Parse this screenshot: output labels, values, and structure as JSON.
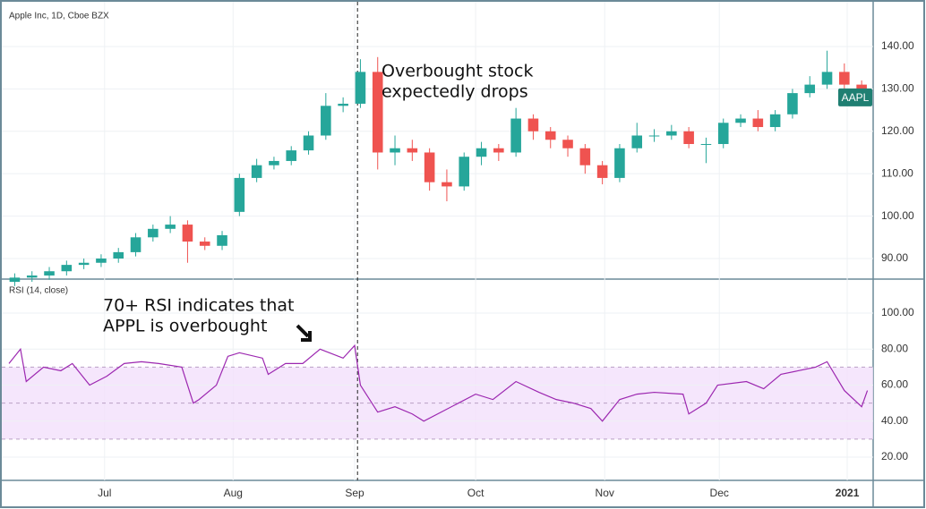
{
  "chart_data": {
    "type": "candlestick",
    "title": "Apple Inc, 1D, Cboe BZX",
    "symbol_label": "AAPL",
    "annotations": [
      "Overbought stock",
      "expectedly drops",
      "70+ RSI indicates that",
      "APPL is overbought"
    ],
    "xlim": [
      0,
      150
    ],
    "xticks": [
      {
        "value": 16.6,
        "label": "Jul"
      },
      {
        "value": 38.9,
        "label": "Aug"
      },
      {
        "value": 60,
        "label": "Sep"
      },
      {
        "value": 81,
        "label": "Oct"
      },
      {
        "value": 103.4,
        "label": "Nov"
      },
      {
        "value": 123.3,
        "label": "Dec"
      },
      {
        "value": 145.5,
        "label": "2021"
      }
    ],
    "marker_x": 60.5,
    "x": [
      1,
      4,
      7,
      10,
      13,
      16,
      19,
      22,
      25,
      28,
      31,
      34,
      37,
      40,
      43,
      46,
      49,
      52,
      55,
      58,
      61,
      64,
      67,
      70,
      73,
      76,
      79,
      82,
      85,
      88,
      91,
      94,
      97,
      100,
      103,
      106,
      109,
      112,
      115,
      118,
      121,
      124,
      127,
      130,
      133,
      136,
      139,
      142,
      145,
      148
    ],
    "open": [
      84.5,
      85.5,
      86,
      87,
      88.5,
      89,
      90,
      91.5,
      95,
      97,
      98,
      94,
      93,
      101,
      109,
      112,
      113,
      115.5,
      119,
      126,
      126.5,
      134,
      115,
      116,
      115,
      108,
      107,
      114,
      116,
      115,
      123,
      120,
      118,
      116,
      112,
      109,
      116,
      119,
      119,
      120,
      117,
      117,
      122,
      123,
      121,
      124,
      129,
      131,
      134,
      131
    ],
    "high": [
      86.5,
      87,
      88,
      89.5,
      90,
      91,
      92.5,
      96,
      98,
      100,
      99,
      95,
      96.5,
      110,
      113.5,
      114,
      116.5,
      120,
      129,
      128,
      137,
      137.5,
      119,
      118,
      116,
      111,
      115,
      117.5,
      117,
      125.5,
      124,
      121,
      119,
      117,
      113,
      117,
      122,
      120.5,
      121.5,
      121,
      118.5,
      123,
      124,
      125,
      125,
      130,
      133,
      139,
      136,
      132
    ],
    "low": [
      83.5,
      84.5,
      85,
      86,
      87.5,
      88,
      89,
      90.5,
      94,
      96,
      89,
      92,
      92,
      100,
      108,
      111,
      112,
      114.5,
      118,
      124.5,
      125.5,
      111,
      112,
      113,
      106,
      103.5,
      106,
      112,
      113,
      114,
      118,
      116,
      114,
      110,
      107.5,
      108,
      115,
      117.5,
      118,
      116,
      112.5,
      116,
      121,
      120,
      120,
      123,
      128,
      130,
      129,
      126.5
    ],
    "close": [
      85.5,
      86,
      87,
      88.5,
      89,
      90,
      91.5,
      95,
      97,
      98,
      94,
      93,
      95.5,
      109,
      112,
      113,
      115.5,
      119,
      126,
      126.5,
      134,
      115,
      116,
      115,
      108,
      107,
      114,
      116,
      115,
      123,
      120,
      118,
      116,
      112,
      109,
      116,
      119,
      119,
      120,
      117,
      117,
      122,
      123,
      121,
      124,
      129,
      131,
      134,
      131,
      128
    ],
    "up_color": "#26a69a",
    "down_color": "#ef5350",
    "ylim": [
      85.15,
      149.9
    ],
    "yticks": [
      {
        "value": 90,
        "label": "90.00"
      },
      {
        "value": 100,
        "label": "100.00"
      },
      {
        "value": 110,
        "label": "110.00"
      },
      {
        "value": 120,
        "label": "120.00"
      },
      {
        "value": 130,
        "label": "130.00"
      },
      {
        "value": 140,
        "label": "140.00"
      }
    ],
    "grid": true,
    "rsi": {
      "title": "RSI (14, close)",
      "color": "#9c27b0",
      "x": [
        0,
        2,
        3,
        6,
        9,
        11,
        14,
        17,
        20,
        23,
        26,
        30,
        32,
        33,
        36,
        38,
        40,
        44,
        45,
        48,
        51,
        54,
        58,
        60,
        61,
        64,
        67,
        70,
        72,
        75,
        78,
        81,
        84,
        88,
        92,
        95,
        98,
        101,
        103,
        106,
        109,
        112,
        117,
        118,
        121,
        123,
        128,
        131,
        134,
        137,
        140,
        142,
        145,
        148,
        149
      ],
      "values": [
        72,
        80,
        62,
        70,
        68,
        72,
        60,
        65,
        72,
        73,
        72,
        70,
        50,
        52,
        60,
        76,
        78,
        75,
        66,
        72,
        72,
        80,
        75,
        82,
        60,
        45,
        48,
        44,
        40,
        45,
        50,
        55,
        52,
        62,
        56,
        52,
        50,
        47,
        40,
        52,
        55,
        56,
        55,
        44,
        50,
        60,
        62,
        58,
        66,
        68,
        70,
        73,
        57,
        48,
        57
      ],
      "ylim": [
        7.1,
        118.9
      ],
      "yticks": [
        {
          "value": 20,
          "label": "20.00"
        },
        {
          "value": 40,
          "label": "40.00"
        },
        {
          "value": 60,
          "label": "60.00"
        },
        {
          "value": 80,
          "label": "80.00"
        },
        {
          "value": 100,
          "label": "100.00"
        }
      ],
      "upper": 70,
      "middle": 50,
      "lower": 30,
      "band_color": "#f3e0fb"
    }
  }
}
